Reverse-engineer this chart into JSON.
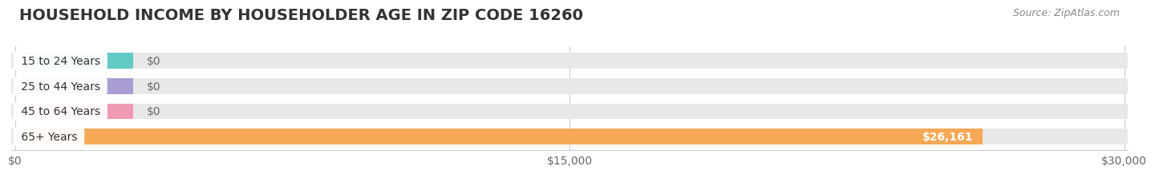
{
  "title": "HOUSEHOLD INCOME BY HOUSEHOLDER AGE IN ZIP CODE 16260",
  "source": "Source: ZipAtlas.com",
  "categories": [
    "15 to 24 Years",
    "25 to 44 Years",
    "45 to 64 Years",
    "65+ Years"
  ],
  "values": [
    0,
    0,
    0,
    26161
  ],
  "bar_colors": [
    "#63c9c4",
    "#a99dd4",
    "#f09ab4",
    "#f5a855"
  ],
  "bar_bg_color": "#e8e8e8",
  "background_color": "#ffffff",
  "xlim": [
    0,
    30000
  ],
  "xtick_labels": [
    "$0",
    "$15,000",
    "$30,000"
  ],
  "xtick_values": [
    0,
    15000,
    30000
  ],
  "value_label_color": "#666666",
  "title_fontsize": 14,
  "source_fontsize": 9,
  "label_fontsize": 10,
  "tick_fontsize": 10,
  "bar_height": 0.62,
  "zero_bar_width": 3200,
  "value_26161_label": "$26,161"
}
